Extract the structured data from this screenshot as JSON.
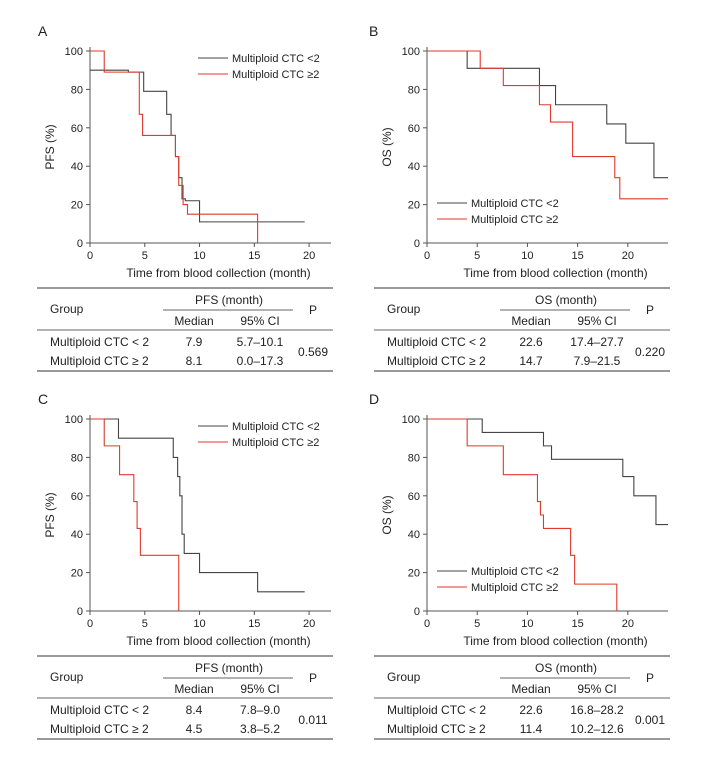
{
  "chart_data": [
    {
      "panel": "A",
      "type": "line",
      "step": true,
      "xlabel": "Time from blood collection (month)",
      "ylabel": "PFS (%)",
      "xlim": [
        0,
        22
      ],
      "ylim": [
        0,
        100
      ],
      "xticks": [
        0,
        5,
        10,
        15,
        20
      ],
      "yticks": [
        0,
        20,
        40,
        60,
        80,
        100
      ],
      "legend_position": "top-right",
      "series": [
        {
          "name": "Multiploid CTC <2",
          "color": "#444444",
          "x": [
            0,
            1.6,
            3.5,
            4.9,
            7.0,
            7.4,
            7.8,
            8.1,
            8.4,
            8.7,
            10.0,
            19.6
          ],
          "y": [
            90,
            90,
            89,
            79,
            67,
            56,
            45,
            34,
            23,
            22,
            11,
            11
          ]
        },
        {
          "name": "Multiploid CTC ≥2",
          "color": "#e03a2e",
          "x": [
            0,
            1.3,
            4.5,
            4.8,
            7.3,
            7.8,
            8.1,
            8.5,
            8.9,
            15.3
          ],
          "y": [
            100,
            89,
            67,
            56,
            56,
            45,
            30,
            20,
            15,
            0
          ]
        }
      ],
      "table": {
        "header_group": "Group",
        "header_measure": "PFS (month)",
        "header_median": "Median",
        "header_ci": "95% CI",
        "header_p": "P",
        "rows": [
          {
            "group": "Multiploid CTC < 2",
            "median": "7.9",
            "ci": "5.7–10.1"
          },
          {
            "group": "Multiploid CTC ≥ 2",
            "median": "8.1",
            "ci": "0.0–17.3"
          }
        ],
        "p": "0.569"
      }
    },
    {
      "panel": "B",
      "type": "line",
      "step": true,
      "xlabel": "Time from blood collection (month)",
      "ylabel": "OS (%)",
      "xlim": [
        0,
        24
      ],
      "ylim": [
        0,
        100
      ],
      "xticks": [
        0,
        5,
        10,
        15,
        20
      ],
      "yticks": [
        0,
        20,
        40,
        60,
        80,
        100
      ],
      "legend_position": "bottom-left",
      "series": [
        {
          "name": "Multiploid CTC <2",
          "color": "#444444",
          "x": [
            0,
            4.0,
            11.2,
            12.8,
            17.9,
            19.8,
            22.6,
            24
          ],
          "y": [
            100,
            91,
            82,
            72,
            62,
            52,
            34,
            34
          ]
        },
        {
          "name": "Multiploid CTC ≥2",
          "color": "#e03a2e",
          "x": [
            0,
            5.3,
            7.6,
            11.2,
            12.3,
            14.5,
            18.7,
            19.2,
            24
          ],
          "y": [
            100,
            91,
            82,
            72,
            63,
            45,
            34,
            23,
            23
          ]
        }
      ],
      "table": {
        "header_group": "Group",
        "header_measure": "OS (month)",
        "header_median": "Median",
        "header_ci": "95% CI",
        "header_p": "P",
        "rows": [
          {
            "group": "Multiploid CTC < 2",
            "median": "22.6",
            "ci": "17.4–27.7"
          },
          {
            "group": "Multiploid CTC ≥ 2",
            "median": "14.7",
            "ci": "7.9–21.5"
          }
        ],
        "p": "0.220"
      }
    },
    {
      "panel": "C",
      "type": "line",
      "step": true,
      "xlabel": "Time from blood collection (month)",
      "ylabel": "PFS (%)",
      "xlim": [
        0,
        22
      ],
      "ylim": [
        0,
        100
      ],
      "xticks": [
        0,
        5,
        10,
        15,
        20
      ],
      "yticks": [
        0,
        20,
        40,
        60,
        80,
        100
      ],
      "legend_position": "top-right",
      "series": [
        {
          "name": "Multiploid CTC <2",
          "color": "#444444",
          "x": [
            0,
            2.6,
            7.0,
            7.6,
            8.0,
            8.2,
            8.4,
            8.6,
            10.0,
            15.3,
            19.6
          ],
          "y": [
            100,
            90,
            90,
            80,
            70,
            60,
            40,
            30,
            20,
            10,
            10
          ]
        },
        {
          "name": "Multiploid CTC ≥2",
          "color": "#e03a2e",
          "x": [
            0,
            1.3,
            2.7,
            4.0,
            4.3,
            4.6,
            8.1
          ],
          "y": [
            100,
            86,
            71,
            57,
            43,
            29,
            0
          ]
        }
      ],
      "table": {
        "header_group": "Group",
        "header_measure": "PFS (month)",
        "header_median": "Median",
        "header_ci": "95% CI",
        "header_p": "P",
        "rows": [
          {
            "group": "Multiploid CTC < 2",
            "median": "8.4",
            "ci": "7.8–9.0"
          },
          {
            "group": "Multiploid CTC ≥ 2",
            "median": "4.5",
            "ci": "3.8–5.2"
          }
        ],
        "p": "0.011"
      }
    },
    {
      "panel": "D",
      "type": "line",
      "step": true,
      "xlabel": "Time from blood collection (month)",
      "ylabel": "OS (%)",
      "xlim": [
        0,
        24
      ],
      "ylim": [
        0,
        100
      ],
      "xticks": [
        0,
        5,
        10,
        15,
        20
      ],
      "yticks": [
        0,
        20,
        40,
        60,
        80,
        100
      ],
      "legend_position": "bottom-left",
      "series": [
        {
          "name": "Multiploid CTC <2",
          "color": "#444444",
          "x": [
            0,
            5.5,
            11.6,
            12.4,
            19.5,
            20.6,
            22.8,
            24
          ],
          "y": [
            100,
            93,
            86,
            79,
            70,
            60,
            45,
            45
          ]
        },
        {
          "name": "Multiploid CTC ≥2",
          "color": "#e03a2e",
          "x": [
            0,
            4.0,
            7.6,
            11.0,
            11.3,
            11.6,
            14.3,
            14.7,
            18.9
          ],
          "y": [
            100,
            86,
            71,
            57,
            50,
            43,
            29,
            14,
            0
          ]
        }
      ],
      "table": {
        "header_group": "Group",
        "header_measure": "OS (month)",
        "header_median": "Median",
        "header_ci": "95% CI",
        "header_p": "P",
        "rows": [
          {
            "group": "Multiploid CTC < 2",
            "median": "22.6",
            "ci": "16.8–28.2"
          },
          {
            "group": "Multiploid CTC ≥ 2",
            "median": "11.4",
            "ci": "10.2–12.6"
          }
        ],
        "p": "0.001"
      }
    }
  ]
}
